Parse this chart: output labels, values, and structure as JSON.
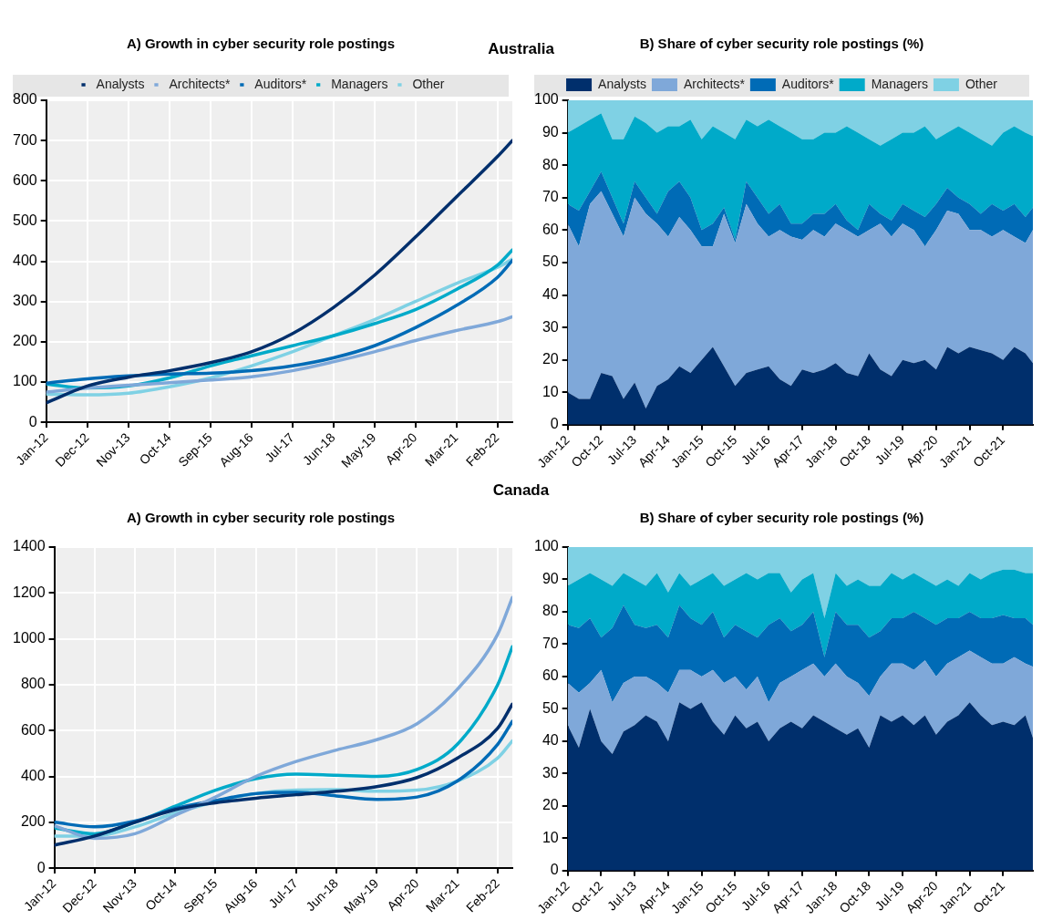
{
  "chart_data": [
    {
      "type": "line",
      "title": "Australia",
      "subtitle": "A) Growth in cyber security role postings",
      "legend": "top",
      "grid": true,
      "xlim": [
        "2012-01",
        "2022-06"
      ],
      "ylim": [
        0,
        800
      ],
      "yticks": [
        0,
        100,
        200,
        300,
        400,
        500,
        600,
        700,
        800
      ],
      "xticks": [
        {
          "value": "2012-01",
          "label": "Jan-12"
        },
        {
          "value": "2012-12",
          "label": "Dec-12"
        },
        {
          "value": "2013-11",
          "label": "Nov-13"
        },
        {
          "value": "2014-10",
          "label": "Oct-14"
        },
        {
          "value": "2015-09",
          "label": "Sep-15"
        },
        {
          "value": "2016-08",
          "label": "Aug-16"
        },
        {
          "value": "2017-07",
          "label": "Jul-17"
        },
        {
          "value": "2018-06",
          "label": "Jun-18"
        },
        {
          "value": "2019-05",
          "label": "May-19"
        },
        {
          "value": "2020-04",
          "label": "Apr-20"
        },
        {
          "value": "2021-03",
          "label": "Mar-21"
        },
        {
          "value": "2022-02",
          "label": "Feb-22"
        }
      ],
      "x": [
        "2012-01",
        "2012-12",
        "2013-11",
        "2014-10",
        "2015-09",
        "2016-08",
        "2017-07",
        "2018-06",
        "2019-05",
        "2020-04",
        "2021-03",
        "2022-02",
        "2022-06"
      ],
      "series": [
        {
          "name": "Analysts",
          "color": "#002f6c",
          "values": [
            48,
            90,
            112,
            128,
            148,
            175,
            220,
            285,
            365,
            460,
            560,
            660,
            700
          ]
        },
        {
          "name": "Architects*",
          "color": "#7fa8d9",
          "values": [
            75,
            85,
            92,
            98,
            105,
            113,
            128,
            150,
            175,
            203,
            228,
            250,
            262
          ]
        },
        {
          "name": "Auditors*",
          "color": "#006bb6",
          "values": [
            97,
            108,
            115,
            120,
            122,
            128,
            140,
            160,
            190,
            235,
            290,
            360,
            402
          ]
        },
        {
          "name": "Managers",
          "color": "#00aac9",
          "values": [
            95,
            85,
            90,
            110,
            140,
            165,
            190,
            215,
            245,
            280,
            330,
            390,
            428
          ]
        },
        {
          "name": "Other",
          "color": "#7fd1e4",
          "values": [
            70,
            68,
            72,
            88,
            110,
            140,
            175,
            215,
            255,
            300,
            345,
            385,
            405
          ]
        }
      ]
    },
    {
      "type": "area",
      "stacked": true,
      "subtitle": "B) Share of cyber security role postings (%)",
      "legend": "top",
      "xlim": [
        "2012-01",
        "2022-06"
      ],
      "ylim": [
        0,
        100
      ],
      "yticks": [
        0,
        10,
        20,
        30,
        40,
        50,
        60,
        70,
        80,
        90,
        100
      ],
      "xticks": [
        {
          "value": "2012-01",
          "label": "Jan-12"
        },
        {
          "value": "2012-10",
          "label": "Oct-12"
        },
        {
          "value": "2013-07",
          "label": "Jul-13"
        },
        {
          "value": "2014-04",
          "label": "Apr-14"
        },
        {
          "value": "2015-01",
          "label": "Jan-15"
        },
        {
          "value": "2015-10",
          "label": "Oct-15"
        },
        {
          "value": "2016-07",
          "label": "Jul-16"
        },
        {
          "value": "2017-04",
          "label": "Apr-17"
        },
        {
          "value": "2018-01",
          "label": "Jan-18"
        },
        {
          "value": "2018-10",
          "label": "Oct-18"
        },
        {
          "value": "2019-07",
          "label": "Jul-19"
        },
        {
          "value": "2020-04",
          "label": "Apr-20"
        },
        {
          "value": "2021-01",
          "label": "Jan-21"
        },
        {
          "value": "2021-10",
          "label": "Oct-21"
        }
      ],
      "x": [
        "2012-01",
        "2012-04",
        "2012-07",
        "2012-10",
        "2013-01",
        "2013-04",
        "2013-07",
        "2013-10",
        "2014-01",
        "2014-04",
        "2014-07",
        "2014-10",
        "2015-01",
        "2015-04",
        "2015-07",
        "2015-10",
        "2016-01",
        "2016-04",
        "2016-07",
        "2016-10",
        "2017-01",
        "2017-04",
        "2017-07",
        "2017-10",
        "2018-01",
        "2018-04",
        "2018-07",
        "2018-10",
        "2019-01",
        "2019-04",
        "2019-07",
        "2019-10",
        "2020-01",
        "2020-04",
        "2020-07",
        "2020-10",
        "2021-01",
        "2021-04",
        "2021-07",
        "2021-10",
        "2022-01",
        "2022-04",
        "2022-06"
      ],
      "series": [
        {
          "name": "Analysts",
          "color": "#002f6c",
          "values": [
            10,
            8,
            8,
            16,
            15,
            8,
            13,
            5,
            12,
            14,
            18,
            16,
            20,
            24,
            18,
            12,
            16,
            17,
            18,
            14,
            12,
            17,
            16,
            17,
            19,
            16,
            15,
            22,
            17,
            15,
            20,
            19,
            20,
            17,
            24,
            22,
            24,
            23,
            22,
            20,
            24,
            22,
            19
          ]
        },
        {
          "name": "Architects*",
          "color": "#7fa8d9",
          "values": [
            52,
            47,
            60,
            56,
            50,
            50,
            57,
            60,
            50,
            44,
            46,
            44,
            35,
            31,
            47,
            44,
            52,
            45,
            40,
            46,
            46,
            40,
            44,
            41,
            43,
            44,
            43,
            38,
            45,
            43,
            42,
            41,
            35,
            43,
            42,
            43,
            36,
            37,
            36,
            40,
            34,
            34,
            41
          ]
        },
        {
          "name": "Auditors*",
          "color": "#006bb6",
          "values": [
            6,
            11,
            4,
            6,
            5,
            4,
            5,
            5,
            3,
            14,
            11,
            10,
            5,
            7,
            2,
            1,
            7,
            8,
            7,
            8,
            4,
            5,
            5,
            7,
            6,
            3,
            2,
            8,
            3,
            5,
            6,
            6,
            9,
            8,
            7,
            5,
            8,
            5,
            10,
            6,
            10,
            8,
            7
          ]
        },
        {
          "name": "Managers",
          "color": "#00aac9",
          "values": [
            22,
            26,
            22,
            18,
            18,
            26,
            20,
            23,
            25,
            20,
            17,
            24,
            28,
            30,
            23,
            31,
            19,
            22,
            29,
            24,
            28,
            26,
            23,
            25,
            22,
            29,
            30,
            20,
            21,
            25,
            22,
            24,
            28,
            20,
            17,
            22,
            22,
            23,
            18,
            24,
            24,
            26,
            22
          ]
        },
        {
          "name": "Other",
          "color": "#7fd1e4",
          "values": [
            10,
            8,
            6,
            4,
            12,
            12,
            5,
            7,
            10,
            8,
            8,
            6,
            12,
            8,
            10,
            12,
            6,
            8,
            6,
            8,
            10,
            12,
            12,
            10,
            10,
            8,
            10,
            12,
            14,
            12,
            10,
            10,
            8,
            12,
            10,
            8,
            10,
            12,
            14,
            10,
            8,
            10,
            11
          ]
        }
      ]
    },
    {
      "type": "line",
      "title": "Canada",
      "subtitle": "A) Growth in cyber security role postings",
      "grid": true,
      "xlim": [
        "2012-01",
        "2022-06"
      ],
      "ylim": [
        0,
        1400
      ],
      "yticks": [
        0,
        200,
        400,
        600,
        800,
        1000,
        1200,
        1400
      ],
      "xticks": [
        {
          "value": "2012-01",
          "label": "Jan-12"
        },
        {
          "value": "2012-12",
          "label": "Dec-12"
        },
        {
          "value": "2013-11",
          "label": "Nov-13"
        },
        {
          "value": "2014-10",
          "label": "Oct-14"
        },
        {
          "value": "2015-09",
          "label": "Sep-15"
        },
        {
          "value": "2016-08",
          "label": "Aug-16"
        },
        {
          "value": "2017-07",
          "label": "Jul-17"
        },
        {
          "value": "2018-06",
          "label": "Jun-18"
        },
        {
          "value": "2019-05",
          "label": "May-19"
        },
        {
          "value": "2020-04",
          "label": "Apr-20"
        },
        {
          "value": "2021-03",
          "label": "Mar-21"
        },
        {
          "value": "2022-02",
          "label": "Feb-22"
        }
      ],
      "x": [
        "2012-01",
        "2012-12",
        "2013-11",
        "2014-10",
        "2015-09",
        "2016-08",
        "2017-07",
        "2018-06",
        "2019-05",
        "2020-04",
        "2021-03",
        "2022-02",
        "2022-06"
      ],
      "series": [
        {
          "color": "#002f6c",
          "values": [
            100,
            140,
            200,
            255,
            285,
            305,
            320,
            335,
            355,
            395,
            480,
            610,
            715
          ]
        },
        {
          "color": "#7fa8d9",
          "values": [
            185,
            130,
            150,
            230,
            310,
            400,
            465,
            515,
            560,
            630,
            780,
            1020,
            1180
          ]
        },
        {
          "color": "#006bb6",
          "values": [
            200,
            180,
            205,
            260,
            295,
            325,
            330,
            315,
            300,
            310,
            380,
            540,
            640
          ]
        },
        {
          "color": "#00aac9",
          "values": [
            175,
            150,
            200,
            270,
            340,
            390,
            410,
            405,
            400,
            430,
            540,
            800,
            965
          ]
        },
        {
          "color": "#7fd1e4",
          "values": [
            140,
            140,
            180,
            240,
            290,
            325,
            340,
            342,
            335,
            340,
            380,
            480,
            555
          ]
        }
      ]
    },
    {
      "type": "area",
      "stacked": true,
      "subtitle": "B) Share of cyber security role postings (%)",
      "xlim": [
        "2012-01",
        "2022-06"
      ],
      "ylim": [
        0,
        100
      ],
      "yticks": [
        0,
        10,
        20,
        30,
        40,
        50,
        60,
        70,
        80,
        90,
        100
      ],
      "xticks": [
        {
          "value": "2012-01",
          "label": "Jan-12"
        },
        {
          "value": "2012-10",
          "label": "Oct-12"
        },
        {
          "value": "2013-07",
          "label": "Jul-13"
        },
        {
          "value": "2014-04",
          "label": "Apr-14"
        },
        {
          "value": "2015-01",
          "label": "Jan-15"
        },
        {
          "value": "2015-10",
          "label": "Oct-15"
        },
        {
          "value": "2016-07",
          "label": "Jul-16"
        },
        {
          "value": "2017-04",
          "label": "Apr-17"
        },
        {
          "value": "2018-01",
          "label": "Jan-18"
        },
        {
          "value": "2018-10",
          "label": "Oct-18"
        },
        {
          "value": "2019-07",
          "label": "Jul-19"
        },
        {
          "value": "2020-04",
          "label": "Apr-20"
        },
        {
          "value": "2021-01",
          "label": "Jan-21"
        },
        {
          "value": "2021-10",
          "label": "Oct-21"
        }
      ],
      "x": [
        "2012-01",
        "2012-04",
        "2012-07",
        "2012-10",
        "2013-01",
        "2013-04",
        "2013-07",
        "2013-10",
        "2014-01",
        "2014-04",
        "2014-07",
        "2014-10",
        "2015-01",
        "2015-04",
        "2015-07",
        "2015-10",
        "2016-01",
        "2016-04",
        "2016-07",
        "2016-10",
        "2017-01",
        "2017-04",
        "2017-07",
        "2017-10",
        "2018-01",
        "2018-04",
        "2018-07",
        "2018-10",
        "2019-01",
        "2019-04",
        "2019-07",
        "2019-10",
        "2020-01",
        "2020-04",
        "2020-07",
        "2020-10",
        "2021-01",
        "2021-04",
        "2021-07",
        "2021-10",
        "2022-01",
        "2022-04",
        "2022-06"
      ],
      "series": [
        {
          "color": "#002f6c",
          "values": [
            45,
            38,
            50,
            40,
            36,
            43,
            45,
            48,
            46,
            40,
            52,
            50,
            52,
            46,
            42,
            48,
            44,
            46,
            40,
            44,
            46,
            44,
            48,
            46,
            44,
            42,
            44,
            38,
            48,
            46,
            48,
            45,
            48,
            42,
            46,
            48,
            52,
            48,
            45,
            46,
            45,
            48,
            41
          ]
        },
        {
          "color": "#7fa8d9",
          "values": [
            13,
            17,
            8,
            22,
            16,
            15,
            15,
            12,
            12,
            15,
            10,
            12,
            8,
            16,
            16,
            12,
            12,
            14,
            12,
            14,
            14,
            18,
            16,
            14,
            20,
            18,
            14,
            16,
            12,
            18,
            16,
            17,
            17,
            18,
            18,
            18,
            16,
            18,
            19,
            18,
            21,
            16,
            22
          ]
        },
        {
          "color": "#006bb6",
          "values": [
            18,
            20,
            20,
            10,
            23,
            24,
            16,
            15,
            18,
            17,
            20,
            16,
            16,
            18,
            14,
            16,
            18,
            12,
            24,
            20,
            14,
            14,
            16,
            6,
            16,
            16,
            18,
            18,
            14,
            14,
            14,
            18,
            13,
            16,
            14,
            12,
            12,
            12,
            14,
            15,
            12,
            14,
            13
          ]
        },
        {
          "color": "#00aac9",
          "values": [
            12,
            15,
            14,
            18,
            13,
            10,
            14,
            13,
            16,
            14,
            10,
            10,
            14,
            12,
            16,
            14,
            18,
            18,
            16,
            14,
            12,
            14,
            12,
            12,
            12,
            12,
            14,
            16,
            14,
            14,
            12,
            12,
            12,
            12,
            12,
            10,
            12,
            12,
            14,
            14,
            15,
            14,
            16
          ]
        },
        {
          "color": "#7fd1e4",
          "values": [
            12,
            10,
            8,
            10,
            12,
            8,
            10,
            12,
            8,
            14,
            8,
            12,
            10,
            8,
            12,
            10,
            8,
            10,
            8,
            8,
            14,
            10,
            8,
            22,
            8,
            12,
            10,
            12,
            12,
            8,
            10,
            8,
            10,
            12,
            10,
            12,
            8,
            10,
            8,
            7,
            7,
            8,
            8
          ]
        }
      ]
    }
  ]
}
